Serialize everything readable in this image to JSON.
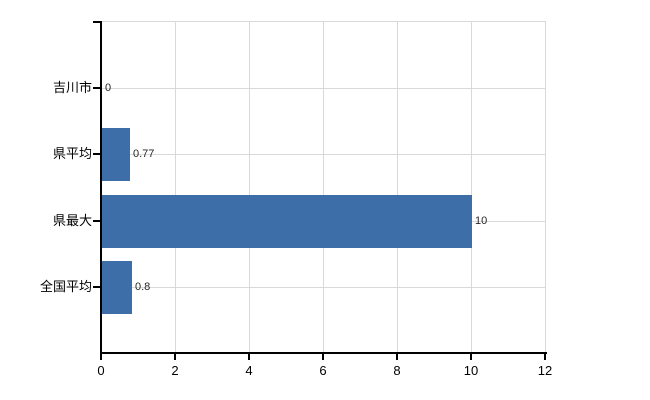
{
  "chart_data": {
    "type": "bar",
    "orientation": "horizontal",
    "title": "",
    "xlabel": "",
    "ylabel": "",
    "categories": [
      "吉川市",
      "県平均",
      "県最大",
      "全国平均"
    ],
    "values": [
      0,
      0.77,
      10,
      0.8
    ],
    "value_labels": [
      "0",
      "0.77",
      "10",
      "0.8"
    ],
    "xlim": [
      0,
      12
    ],
    "xticks": [
      0,
      2,
      4,
      6,
      8,
      10,
      12
    ],
    "xtick_labels": [
      "0",
      "2",
      "4",
      "6",
      "8",
      "10",
      "12"
    ],
    "grid": true,
    "legend": false,
    "colors": {
      "bar": "#3d6ea8",
      "gridline": "#d9d9d9",
      "axis": "#000000",
      "category_text": "#000000",
      "value_text": "#262626",
      "background": "#ffffff"
    }
  }
}
